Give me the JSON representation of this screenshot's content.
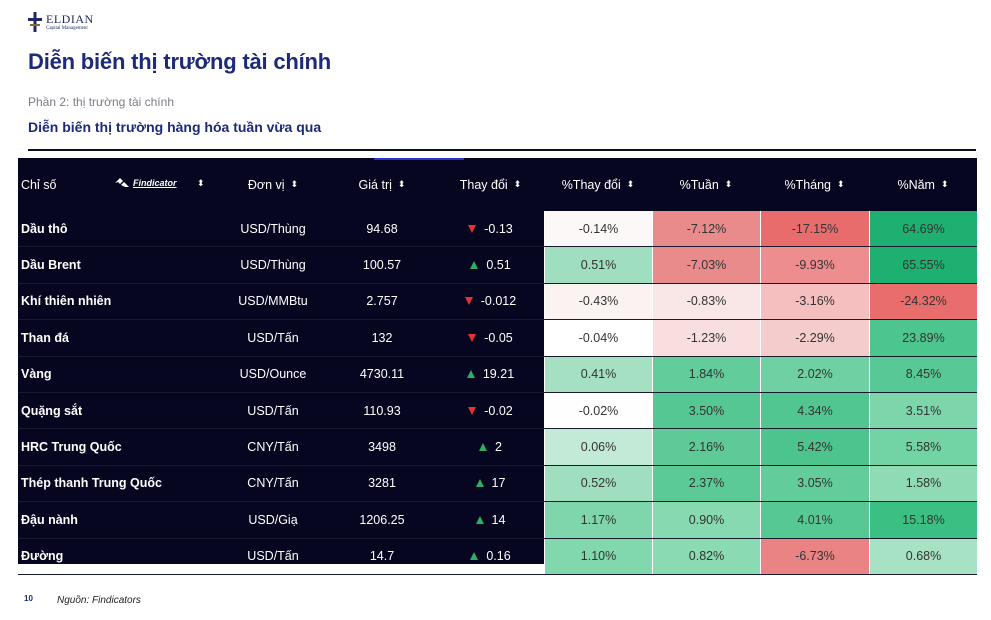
{
  "logo": {
    "name": "ELDIAN",
    "sub": "Capital Management"
  },
  "title": "Diễn biến thị trường tài chính",
  "section": "Phần 2: thị trường tài chính",
  "heading": "Diễn biến thị trường hàng hóa tuần vừa qua",
  "table": {
    "headers": {
      "name": "Chỉ số",
      "brand": "Findicator",
      "unit": "Đơn vị",
      "value": "Giá trị",
      "change": "Thay đổi",
      "pct_change": "%Thay đổi",
      "pct_week": "%Tuần",
      "pct_month": "%Tháng",
      "pct_year": "%Năm"
    },
    "rows": [
      {
        "name": "Dầu thô",
        "unit": "USD/Thùng",
        "value": "94.68",
        "dir": "down",
        "change": "-0.13",
        "pct_change": "-0.14%",
        "pct_week": "-7.12%",
        "pct_month": "-17.15%",
        "pct_year": "64.69%",
        "colors": [
          "#fbf8f7",
          "#ea8b8b",
          "#e96c6c",
          "#1db070"
        ]
      },
      {
        "name": "Dầu Brent",
        "unit": "USD/Thùng",
        "value": "100.57",
        "dir": "up",
        "change": "0.51",
        "pct_change": "0.51%",
        "pct_week": "-7.03%",
        "pct_month": "-9.93%",
        "pct_year": "65.55%",
        "colors": [
          "#9fdebe",
          "#ea8b8b",
          "#ee8d8f",
          "#1db070"
        ]
      },
      {
        "name": "Khí thiên nhiên",
        "unit": "USD/MMBtu",
        "value": "2.757",
        "dir": "down",
        "change": "-0.012",
        "pct_change": "-0.43%",
        "pct_week": "-0.83%",
        "pct_month": "-3.16%",
        "pct_year": "-24.32%",
        "colors": [
          "#faf3f2",
          "#f9e6e6",
          "#f5bfbf",
          "#ea6d6d"
        ]
      },
      {
        "name": "Than đá",
        "unit": "USD/Tấn",
        "value": "132",
        "dir": "down",
        "change": "-0.05",
        "pct_change": "-0.04%",
        "pct_week": "-1.23%",
        "pct_month": "-2.29%",
        "pct_year": "23.89%",
        "colors": [
          "#ffffff",
          "#f8dede",
          "#f5cccc",
          "#4cc58e"
        ]
      },
      {
        "name": "Vàng",
        "unit": "USD/Ounce",
        "value": "4730.11",
        "dir": "up",
        "change": "19.21",
        "pct_change": "0.41%",
        "pct_week": "1.84%",
        "pct_month": "2.02%",
        "pct_year": "8.45%",
        "colors": [
          "#a5e0c2",
          "#62cc9b",
          "#6fd0a3",
          "#58c996"
        ]
      },
      {
        "name": "Quặng sắt",
        "unit": "USD/Tấn",
        "value": "110.93",
        "dir": "down",
        "change": "-0.02",
        "pct_change": "-0.02%",
        "pct_week": "3.50%",
        "pct_month": "4.34%",
        "pct_year": "3.51%",
        "colors": [
          "#fefefe",
          "#55c793",
          "#52c691",
          "#7dd5ac"
        ]
      },
      {
        "name": "HRC Trung Quốc",
        "unit": "CNY/Tấn",
        "value": "3498",
        "dir": "up",
        "change": "2",
        "pct_change": "0.06%",
        "pct_week": "2.16%",
        "pct_month": "5.42%",
        "pct_year": "5.58%",
        "colors": [
          "#c3ead6",
          "#5dca98",
          "#4dc38e",
          "#72d3a5"
        ]
      },
      {
        "name": "Thép thanh Trung Quốc",
        "unit": "CNY/Tấn",
        "value": "3281",
        "dir": "up",
        "change": "17",
        "pct_change": "0.52%",
        "pct_week": "2.37%",
        "pct_month": "3.05%",
        "pct_year": "1.58%",
        "colors": [
          "#9fdebe",
          "#5bca97",
          "#62cc9b",
          "#8edbb5"
        ]
      },
      {
        "name": "Đậu nành",
        "unit": "USD/Giạ",
        "value": "1206.25",
        "dir": "up",
        "change": "14",
        "pct_change": "1.17%",
        "pct_week": "0.90%",
        "pct_month": "4.01%",
        "pct_year": "15.18%",
        "colors": [
          "#7fd6ad",
          "#86d9b0",
          "#56c894",
          "#3bbf83"
        ]
      },
      {
        "name": "Đường",
        "unit": "USD/Tấn",
        "value": "14.7",
        "dir": "up",
        "change": "0.16",
        "pct_change": "1.10%",
        "pct_week": "0.82%",
        "pct_month": "-6.73%",
        "pct_year": "0.68%",
        "colors": [
          "#81d7ae",
          "#8adab3",
          "#ea8484",
          "#a8e2c5"
        ]
      }
    ]
  },
  "footer": {
    "page": "10",
    "source": "Nguồn: Findicators"
  }
}
